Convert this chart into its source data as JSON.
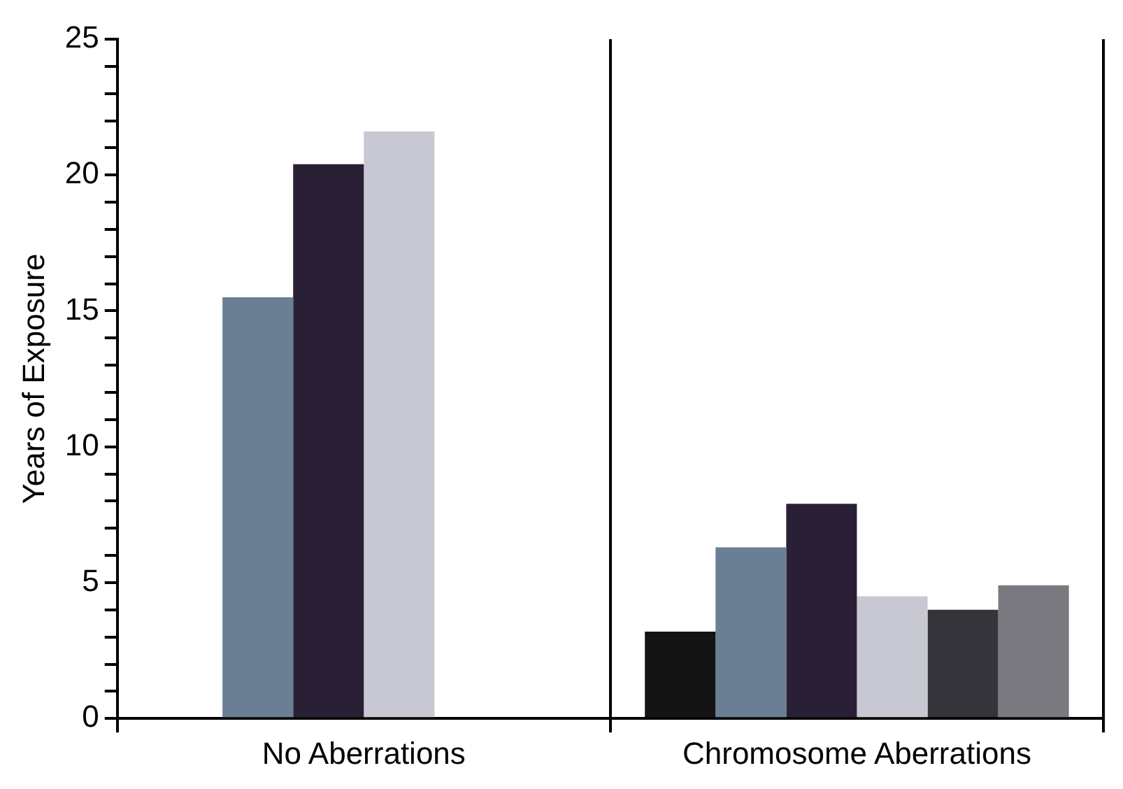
{
  "chart_data": {
    "type": "bar",
    "ylabel": "Years of Exposure",
    "categories": [
      "No Aberrations",
      "Chromosome Aberrations"
    ],
    "series": [
      {
        "color": "#141414",
        "values": [
          null,
          3.2
        ]
      },
      {
        "color": "#6b7f94",
        "values": [
          15.5,
          6.3
        ]
      },
      {
        "color": "#2a2035",
        "values": [
          20.4,
          7.9
        ]
      },
      {
        "color": "#c8c8d2",
        "values": [
          21.6,
          4.5
        ]
      },
      {
        "color": "#35343a",
        "values": [
          null,
          4.0
        ]
      },
      {
        "color": "#7a7a80",
        "values": [
          null,
          4.9
        ]
      }
    ],
    "ylim": [
      0,
      25
    ],
    "yticks": [
      0,
      {
        "value": 1,
        "label": null
      },
      {
        "value": 2,
        "label": null
      },
      {
        "value": 3,
        "label": null
      },
      {
        "value": 4,
        "label": null
      },
      5,
      {
        "value": 6,
        "label": null
      },
      {
        "value": 7,
        "label": null
      },
      {
        "value": 8,
        "label": null
      },
      {
        "value": 9,
        "label": null
      },
      10,
      {
        "value": 11,
        "label": null
      },
      {
        "value": 12,
        "label": null
      },
      {
        "value": 13,
        "label": null
      },
      {
        "value": 14,
        "label": null
      },
      15,
      {
        "value": 16,
        "label": null
      },
      {
        "value": 17,
        "label": null
      },
      {
        "value": 18,
        "label": null
      },
      {
        "value": 19,
        "label": null
      },
      20,
      {
        "value": 21,
        "label": null
      },
      {
        "value": 22,
        "label": null
      },
      {
        "value": 23,
        "label": null
      },
      {
        "value": 24,
        "label": null
      },
      25
    ],
    "grid": "x",
    "legend": false
  }
}
